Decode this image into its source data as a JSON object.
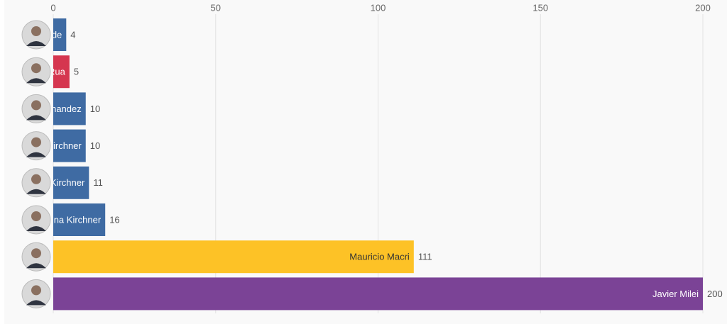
{
  "chart_data": {
    "type": "bar",
    "orientation": "horizontal",
    "categories": [
      "de",
      "Rua",
      "nandez",
      "irchner",
      "Kirchner",
      "na Kirchner",
      "Mauricio Macri",
      "Javier Milei"
    ],
    "values": [
      4,
      5,
      10,
      10,
      11,
      16,
      111,
      200
    ],
    "colors": [
      "#3f6ba3",
      "#d5364f",
      "#3f6ba3",
      "#3f6ba3",
      "#3f6ba3",
      "#3f6ba3",
      "#fdc226",
      "#7b4396"
    ],
    "label_colors": [
      "#fff",
      "#fff",
      "#fff",
      "#fff",
      "#fff",
      "#fff",
      "#333",
      "#fff"
    ],
    "xlim": [
      0,
      200
    ],
    "xticks": [
      0,
      50,
      100,
      150,
      200
    ],
    "grid": true
  }
}
